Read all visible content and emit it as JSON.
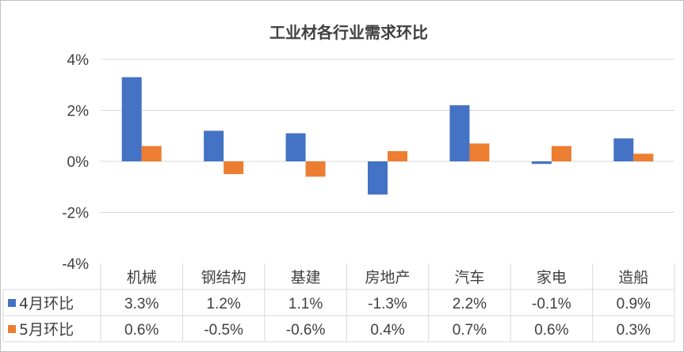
{
  "chart_data": {
    "type": "bar",
    "title": "工业材各行业需求环比",
    "categories": [
      "机械",
      "钢结构",
      "基建",
      "房地产",
      "汽车",
      "家电",
      "造船"
    ],
    "series": [
      {
        "name": "4月环比",
        "color": "#4472C4",
        "values": [
          3.3,
          1.2,
          1.1,
          -1.3,
          2.2,
          -0.1,
          0.9
        ],
        "labels": [
          "3.3%",
          "1.2%",
          "1.1%",
          "-1.3%",
          "2.2%",
          "-0.1%",
          "0.9%"
        ]
      },
      {
        "name": "5月环比",
        "color": "#ED7D31",
        "values": [
          0.6,
          -0.5,
          -0.6,
          0.4,
          0.7,
          0.6,
          0.3
        ],
        "labels": [
          "0.6%",
          "-0.5%",
          "-0.6%",
          "0.4%",
          "0.7%",
          "0.6%",
          "0.3%"
        ]
      }
    ],
    "ylim": [
      -4,
      4
    ],
    "yticks": [
      "4%",
      "2%",
      "0%",
      "-2%",
      "-4%"
    ],
    "ytick_values": [
      4,
      2,
      0,
      -2,
      -4
    ],
    "grid": true,
    "legend": "data-table",
    "xlabel": "",
    "ylabel": ""
  }
}
